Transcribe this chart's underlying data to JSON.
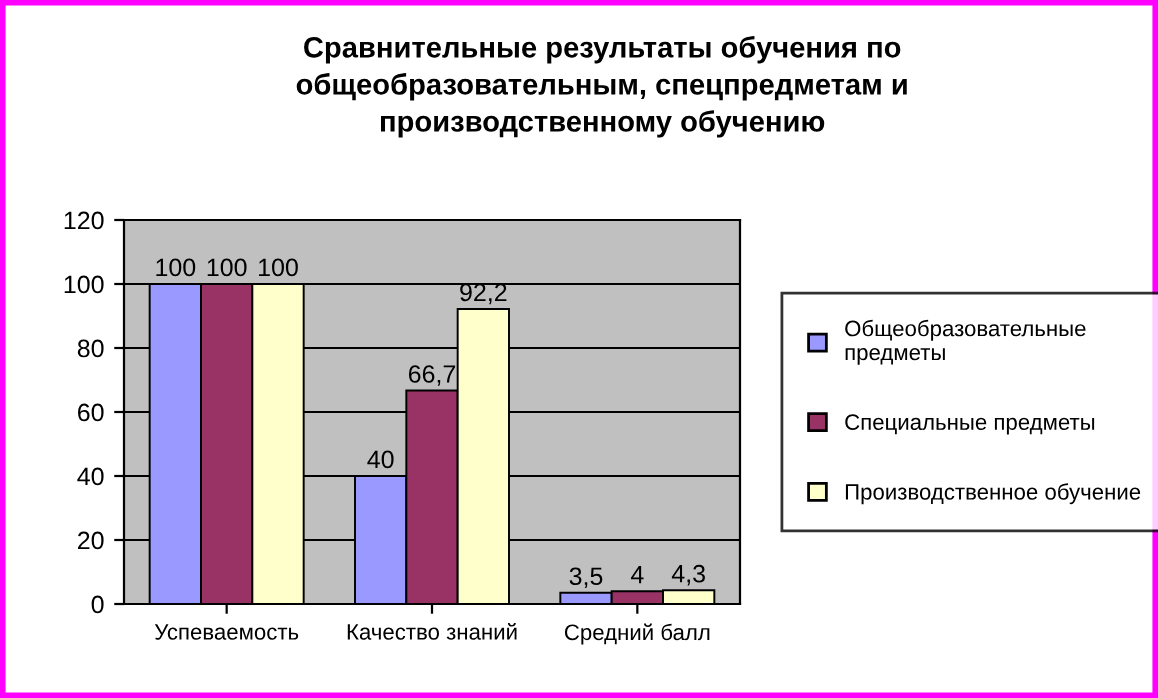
{
  "chart_data": {
    "type": "bar",
    "title": "Сравнительные результаты обучения по\nобщеобразовательным, спецпредметам и\nпроизводственному обучению",
    "categories": [
      "Успеваемость",
      "Качество знаний",
      "Средний балл"
    ],
    "series": [
      {
        "name": "Общеобразовательные\nпредметы",
        "color": "#9999ff",
        "values": [
          100,
          40,
          3.5
        ],
        "value_labels": [
          "100",
          "40",
          "3,5"
        ]
      },
      {
        "name": "Специальные предметы",
        "color": "#993366",
        "values": [
          100,
          66.7,
          4
        ],
        "value_labels": [
          "100",
          "66,7",
          "4"
        ]
      },
      {
        "name": "Производственное обучение",
        "color": "#ffffcc",
        "values": [
          100,
          92.2,
          4.3
        ],
        "value_labels": [
          "100",
          "92,2",
          "4,3"
        ]
      }
    ],
    "ylim": [
      0,
      120
    ],
    "yticks": [
      0,
      20,
      40,
      60,
      80,
      100,
      120
    ],
    "grid": "y",
    "legend": "right"
  }
}
